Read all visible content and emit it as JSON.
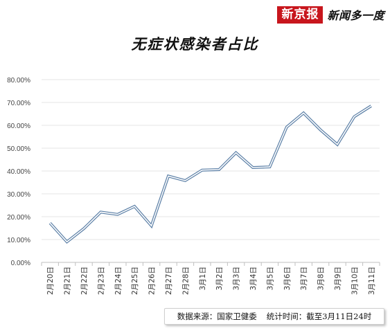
{
  "header": {
    "brand_logo": "新京报",
    "brand_slogan": "新闻多一度"
  },
  "footer": {
    "source": "数据来源：国家卫健委",
    "stat_time": "统计时间：截至3月11日24时"
  },
  "colors": {
    "brand_red": "#c8161d",
    "line_outer": "#5b7fa6",
    "line_inner": "#ffffff",
    "grid": "#e6e6e6"
  },
  "chart_data": {
    "type": "line",
    "title": "无症状感染者占比",
    "xlabel": "",
    "ylabel": "",
    "ylim": [
      0,
      80
    ],
    "yticks": [
      "0.00%",
      "10.00%",
      "20.00%",
      "30.00%",
      "40.00%",
      "50.00%",
      "60.00%",
      "70.00%",
      "80.00%"
    ],
    "grid": true,
    "legend": "none",
    "categories": [
      "2月20日",
      "2月21日",
      "2月22日",
      "2月23日",
      "2月24日",
      "2月25日",
      "2月26日",
      "2月27日",
      "2月28日",
      "3月1日",
      "3月2日",
      "3月3日",
      "3月4日",
      "3月5日",
      "3月6日",
      "3月7日",
      "3月8日",
      "3月9日",
      "3月10日",
      "3月11日"
    ],
    "series": [
      {
        "values": [
          17.2,
          9.0,
          14.8,
          22.0,
          21.0,
          24.5,
          16.0,
          37.8,
          35.8,
          40.4,
          40.6,
          48.0,
          41.5,
          41.8,
          59.2,
          65.4,
          58.0,
          51.6,
          63.8,
          68.5
        ]
      }
    ]
  }
}
